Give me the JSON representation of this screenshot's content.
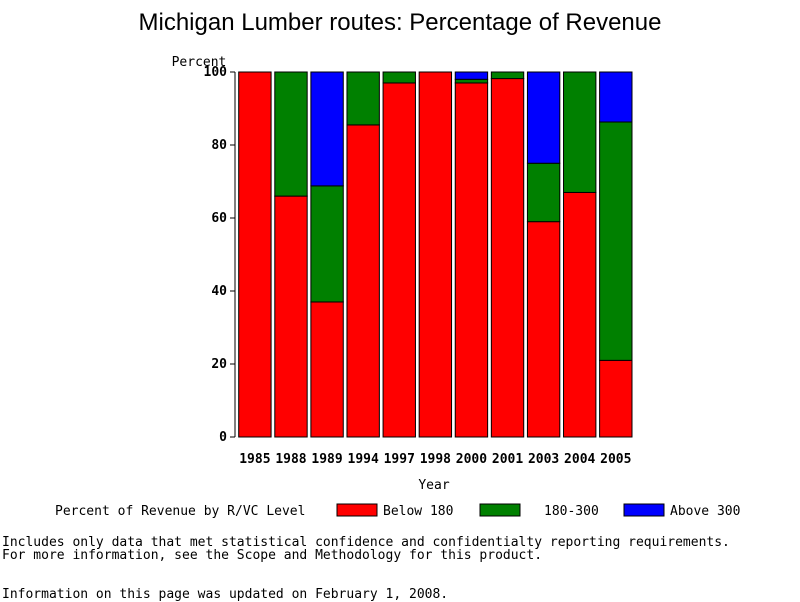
{
  "chart_data": {
    "type": "bar",
    "stacked": true,
    "title": "Michigan Lumber routes: Percentage of Revenue",
    "ylabel": "Percent",
    "xlabel": "Year",
    "ylim": [
      0,
      100
    ],
    "yticks": [
      0,
      20,
      40,
      60,
      80,
      100
    ],
    "categories": [
      "1985",
      "1988",
      "1989",
      "1994",
      "1997",
      "1998",
      "2000",
      "2001",
      "2003",
      "2004",
      "2005"
    ],
    "legend_title": "Percent of Revenue by R/VC Level",
    "legend_position": "bottom",
    "grid": false,
    "series": [
      {
        "name": "Below 180",
        "color": "#ff0000",
        "values": [
          100,
          66,
          37,
          85.5,
          97,
          100,
          97,
          98.2,
          59,
          67,
          21
        ]
      },
      {
        "name": "180-300",
        "color": "#008000",
        "values": [
          0,
          34,
          31.8,
          14.5,
          3,
          0,
          1,
          1.8,
          16,
          33,
          65.3
        ]
      },
      {
        "name": "Above 300",
        "color": "#0000ff",
        "values": [
          0,
          0,
          31.2,
          0,
          0,
          0,
          2,
          0,
          25,
          0,
          13.7
        ]
      }
    ]
  },
  "footnotes": {
    "line1": "Includes only data that met statistical confidence and confidentialty reporting requirements.",
    "line2": "For more information, see the Scope and Methodology for this product.",
    "updated": "Information on this page was updated on February 1, 2008."
  }
}
